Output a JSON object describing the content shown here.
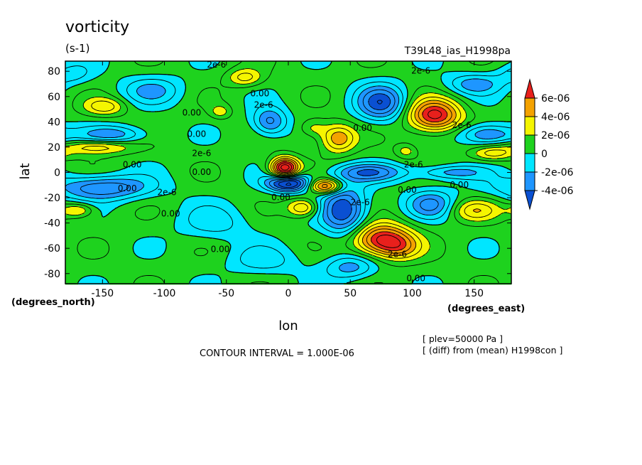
{
  "chart_data": {
    "type": "heatmap",
    "title": "vorticity",
    "units": "(s-1)",
    "run_label": "T39L48_ias_H1998pa",
    "xlabel": "lon",
    "ylabel": "lat",
    "x_unit_label": "(degrees_east)",
    "y_unit_label": "(degrees_north)",
    "xlim": [
      -180,
      180
    ],
    "ylim": [
      -88,
      88
    ],
    "x_ticks": [
      -150,
      -100,
      -50,
      0,
      50,
      100,
      150
    ],
    "y_ticks": [
      -80,
      -60,
      -40,
      -20,
      0,
      20,
      40,
      60,
      80
    ],
    "x_tick_labels": [
      "-150",
      "-100",
      "-50",
      "0",
      "50",
      "100",
      "150"
    ],
    "y_tick_labels": [
      "-80",
      "-60",
      "-40",
      "-20",
      "0",
      "20",
      "40",
      "60",
      "80"
    ],
    "contour_interval_text": "CONTOUR INTERVAL = 1.000E-06",
    "footnotes": [
      "[ plev=50000 Pa ]",
      "[ (diff) from (mean) H1998con ]"
    ],
    "colorbar": {
      "labels": [
        "6e-06",
        "4e-06",
        "2e-06",
        "0",
        "-2e-06",
        "-4e-06"
      ],
      "bands": [
        {
          "min": 6e-06,
          "max": null,
          "color": "#e8201c"
        },
        {
          "min": 4e-06,
          "max": 6e-06,
          "color": "#f4a200"
        },
        {
          "min": 2e-06,
          "max": 4e-06,
          "color": "#f5f500"
        },
        {
          "min": 0,
          "max": 2e-06,
          "color": "#1ed21e"
        },
        {
          "min": -2e-06,
          "max": 0,
          "color": "#00e6ff"
        },
        {
          "min": -4e-06,
          "max": -2e-06,
          "color": "#1e96ff"
        },
        {
          "min": null,
          "max": -4e-06,
          "color": "#0a50d2"
        }
      ]
    },
    "background_value": 5e-07,
    "features": [
      {
        "lon": -3,
        "lat": 3,
        "amp": 9e-06,
        "wlon": 8,
        "wlat": 6
      },
      {
        "lon": 118,
        "lat": 45,
        "amp": 7e-06,
        "wlon": 15,
        "wlat": 9
      },
      {
        "lon": 75,
        "lat": -53,
        "amp": 7e-06,
        "wlon": 17,
        "wlat": 9
      },
      {
        "lon": 30,
        "lat": -11,
        "amp": 6e-06,
        "wlon": 9,
        "wlat": 4
      },
      {
        "lon": 40,
        "lat": 27,
        "amp": 4.5e-06,
        "wlon": 10,
        "wlat": 8
      },
      {
        "lon": 12,
        "lat": -28,
        "amp": 4e-06,
        "wlon": 9,
        "wlat": 5
      },
      {
        "lon": -148,
        "lat": 52,
        "amp": 3e-06,
        "wlon": 12,
        "wlat": 5
      },
      {
        "lon": -155,
        "lat": 20,
        "amp": 3.5e-06,
        "wlon": 20,
        "wlat": 4
      },
      {
        "lon": -170,
        "lat": -30,
        "amp": 3e-06,
        "wlon": 9,
        "wlat": 4
      },
      {
        "lon": 150,
        "lat": -30,
        "amp": 3e-06,
        "wlon": 14,
        "wlat": 6
      },
      {
        "lon": -35,
        "lat": 75,
        "amp": 3e-06,
        "wlon": 10,
        "wlat": 5
      },
      {
        "lon": 165,
        "lat": 15,
        "amp": 3e-06,
        "wlon": 12,
        "wlat": 4
      },
      {
        "lon": 90,
        "lat": -60,
        "amp": 2.5e-06,
        "wlon": 12,
        "wlat": 7
      },
      {
        "lon": 20,
        "lat": 35,
        "amp": 2e-06,
        "wlon": 8,
        "wlat": 5
      },
      {
        "lon": 95,
        "lat": 17,
        "amp": 2e-06,
        "wlon": 6,
        "wlat": 4
      },
      {
        "lon": -55,
        "lat": 48,
        "amp": 2e-06,
        "wlon": 6,
        "wlat": 4
      },
      {
        "lon": 0,
        "lat": -8,
        "amp": -8e-06,
        "wlon": 12,
        "wlat": 5
      },
      {
        "lon": 45,
        "lat": -30,
        "amp": -5.5e-06,
        "wlon": 13,
        "wlat": 14
      },
      {
        "lon": 65,
        "lat": 0,
        "amp": -4e-06,
        "wlon": 20,
        "wlat": 5
      },
      {
        "lon": 75,
        "lat": 55,
        "amp": -5e-06,
        "wlon": 14,
        "wlat": 10
      },
      {
        "lon": -150,
        "lat": -12,
        "amp": -4.5e-06,
        "wlon": 28,
        "wlat": 7
      },
      {
        "lon": -140,
        "lat": 30,
        "amp": -3e-06,
        "wlon": 20,
        "wlat": 5
      },
      {
        "lon": 160,
        "lat": 30,
        "amp": -4e-06,
        "wlon": 16,
        "wlat": 6
      },
      {
        "lon": 130,
        "lat": 0,
        "amp": -3e-06,
        "wlon": 20,
        "wlat": 4
      },
      {
        "lon": -15,
        "lat": 40,
        "amp": -4e-06,
        "wlon": 10,
        "wlat": 8
      },
      {
        "lon": 150,
        "lat": 70,
        "amp": -3e-06,
        "wlon": 16,
        "wlat": 6
      },
      {
        "lon": 50,
        "lat": -75,
        "amp": -3e-06,
        "wlon": 15,
        "wlat": 7
      },
      {
        "lon": 115,
        "lat": -25,
        "amp": -3.5e-06,
        "wlon": 14,
        "wlat": 8
      },
      {
        "lon": -110,
        "lat": 65,
        "amp": -2.5e-06,
        "wlon": 18,
        "wlat": 8
      },
      {
        "lon": -60,
        "lat": -40,
        "amp": -2e-06,
        "wlon": 20,
        "wlat": 10
      },
      {
        "lon": -20,
        "lat": -70,
        "amp": -2e-06,
        "wlon": 20,
        "wlat": 8
      },
      {
        "lon": -175,
        "lat": 78,
        "amp": -2e-06,
        "wlon": 12,
        "wlat": 6
      }
    ],
    "contour_labels": [
      {
        "text": "2e-6",
        "lon": -58,
        "lat": 85
      },
      {
        "text": "2e-6",
        "lon": 107,
        "lat": 80
      },
      {
        "text": "0.00",
        "lon": -23,
        "lat": 62
      },
      {
        "text": "2e-6",
        "lon": -20,
        "lat": 53
      },
      {
        "text": "0.00",
        "lon": -78,
        "lat": 47
      },
      {
        "text": "0.00",
        "lon": 60,
        "lat": 35
      },
      {
        "text": "0.00",
        "lon": -74,
        "lat": 30
      },
      {
        "text": "2e-6",
        "lon": 140,
        "lat": 37
      },
      {
        "text": "2e-6",
        "lon": -70,
        "lat": 15
      },
      {
        "text": "0.00",
        "lon": -126,
        "lat": 6
      },
      {
        "text": "2e-6",
        "lon": 101,
        "lat": 6
      },
      {
        "text": "0.00",
        "lon": -70,
        "lat": 0
      },
      {
        "text": "0.00",
        "lon": -130,
        "lat": -13
      },
      {
        "text": "2e-6",
        "lon": -98,
        "lat": -16
      },
      {
        "text": "0.00",
        "lon": -6,
        "lat": -20
      },
      {
        "text": "0.00",
        "lon": 96,
        "lat": -14
      },
      {
        "text": "0.00",
        "lon": 138,
        "lat": -10
      },
      {
        "text": "0.00",
        "lon": -95,
        "lat": -33
      },
      {
        "text": "2e-6",
        "lon": 58,
        "lat": -24
      },
      {
        "text": "2e-6",
        "lon": 88,
        "lat": -65
      },
      {
        "text": "0.00",
        "lon": -55,
        "lat": -61
      },
      {
        "text": "0.00",
        "lon": 103,
        "lat": -84
      }
    ]
  }
}
